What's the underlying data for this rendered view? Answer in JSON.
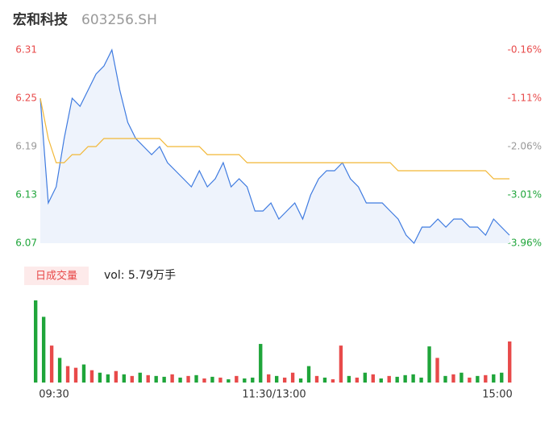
{
  "header": {
    "title": "宏和科技",
    "code": "603256.SH"
  },
  "chart_data": {
    "type": "line",
    "series": [
      {
        "name": "price",
        "color": "#3f7be0",
        "values": [
          6.25,
          6.12,
          6.14,
          6.2,
          6.25,
          6.24,
          6.26,
          6.28,
          6.29,
          6.31,
          6.26,
          6.22,
          6.2,
          6.19,
          6.18,
          6.19,
          6.17,
          6.16,
          6.15,
          6.14,
          6.16,
          6.14,
          6.15,
          6.17,
          6.14,
          6.15,
          6.14,
          6.11,
          6.11,
          6.12,
          6.1,
          6.11,
          6.12,
          6.1,
          6.13,
          6.15,
          6.16,
          6.16,
          6.17,
          6.15,
          6.14,
          6.12,
          6.12,
          6.12,
          6.11,
          6.1,
          6.08,
          6.07,
          6.09,
          6.09,
          6.1,
          6.09,
          6.1,
          6.1,
          6.09,
          6.09,
          6.08,
          6.1,
          6.09,
          6.08
        ]
      },
      {
        "name": "average",
        "color": "#f2b736",
        "values": [
          6.25,
          6.2,
          6.17,
          6.17,
          6.18,
          6.18,
          6.19,
          6.19,
          6.2,
          6.2,
          6.2,
          6.2,
          6.2,
          6.2,
          6.2,
          6.2,
          6.19,
          6.19,
          6.19,
          6.19,
          6.19,
          6.18,
          6.18,
          6.18,
          6.18,
          6.18,
          6.17,
          6.17,
          6.17,
          6.17,
          6.17,
          6.17,
          6.17,
          6.17,
          6.17,
          6.17,
          6.17,
          6.17,
          6.17,
          6.17,
          6.17,
          6.17,
          6.17,
          6.17,
          6.17,
          6.16,
          6.16,
          6.16,
          6.16,
          6.16,
          6.16,
          6.16,
          6.16,
          6.16,
          6.16,
          6.16,
          6.16,
          6.15,
          6.15,
          6.15
        ]
      }
    ],
    "ylim": [
      6.07,
      6.31
    ],
    "yticks": [
      6.07,
      6.13,
      6.19,
      6.25,
      6.31
    ],
    "ytick_colors": [
      "#1fa53a",
      "#1fa53a",
      "#999999",
      "#e84a4a",
      "#e84a4a"
    ],
    "y2lim": [
      -3.96,
      -0.16
    ],
    "y2ticks": [
      {
        "value": -3.96,
        "label": "-3.96%"
      },
      {
        "value": -3.01,
        "label": "-3.01%"
      },
      {
        "value": -2.06,
        "label": "-2.06%"
      },
      {
        "value": -1.11,
        "label": "-1.11%"
      },
      {
        "value": -0.16,
        "label": "-0.16%"
      }
    ],
    "x_labels": [
      "09:30",
      "11:30/13:00",
      "15:00"
    ],
    "volume": {
      "legend": "日成交量",
      "summary": "vol: 5.79万手",
      "values": [
        100,
        80,
        45,
        30,
        20,
        18,
        22,
        15,
        12,
        10,
        14,
        10,
        8,
        12,
        9,
        8,
        7,
        10,
        6,
        8,
        9,
        5,
        7,
        6,
        4,
        8,
        5,
        6,
        47,
        10,
        8,
        6,
        12,
        5,
        20,
        8,
        6,
        4,
        45,
        8,
        6,
        12,
        10,
        5,
        8,
        7,
        9,
        10,
        6,
        44,
        30,
        8,
        10,
        12,
        6,
        8,
        9,
        10,
        12,
        50
      ],
      "colors": [
        "#1fa53a",
        "#1fa53a",
        "#e84a4a",
        "#1fa53a",
        "#e84a4a",
        "#e84a4a",
        "#1fa53a",
        "#e84a4a",
        "#1fa53a",
        "#1fa53a",
        "#e84a4a",
        "#1fa53a",
        "#e84a4a",
        "#1fa53a",
        "#e84a4a",
        "#1fa53a",
        "#1fa53a",
        "#e84a4a",
        "#1fa53a",
        "#e84a4a",
        "#1fa53a",
        "#e84a4a",
        "#1fa53a",
        "#e84a4a",
        "#1fa53a",
        "#e84a4a",
        "#1fa53a",
        "#1fa53a",
        "#1fa53a",
        "#e84a4a",
        "#1fa53a",
        "#e84a4a",
        "#e84a4a",
        "#1fa53a",
        "#1fa53a",
        "#e84a4a",
        "#1fa53a",
        "#e84a4a",
        "#e84a4a",
        "#1fa53a",
        "#e84a4a",
        "#1fa53a",
        "#e84a4a",
        "#1fa53a",
        "#e84a4a",
        "#1fa53a",
        "#1fa53a",
        "#1fa53a",
        "#1fa53a",
        "#1fa53a",
        "#e84a4a",
        "#1fa53a",
        "#e84a4a",
        "#1fa53a",
        "#e84a4a",
        "#1fa53a",
        "#e84a4a",
        "#1fa53a",
        "#1fa53a",
        "#e84a4a"
      ]
    }
  }
}
